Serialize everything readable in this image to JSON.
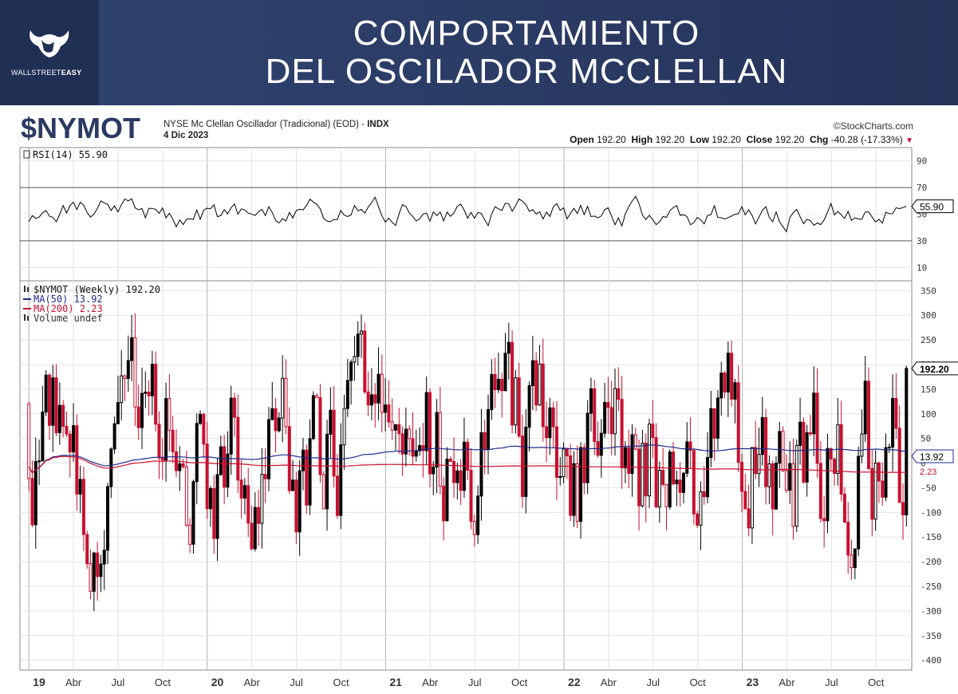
{
  "header": {
    "brand": "WALLSTREET",
    "brand_bold": "EASY",
    "title_line1": "COMPORTAMIENTO",
    "title_line2": "DEL OSCILADOR MCCLELLAN"
  },
  "chart_header": {
    "symbol": "$NYMOT",
    "description": "NYSE Mc Clellan Oscillador (Tradicional) (EOD) - ",
    "exchange": "INDX",
    "date": "4 Dic 2023",
    "source": "©StockCharts.com",
    "open_label": "Open",
    "open": "192.20",
    "high_label": "High",
    "high": "192.20",
    "low_label": "Low",
    "low": "192.20",
    "close_label": "Close",
    "close": "192.20",
    "chg_label": "Chg",
    "chg": "-40.28 (-17.33%)"
  },
  "colors": {
    "up": "#000000",
    "down": "#c8102e",
    "ma50": "#1f2a8c",
    "ma200": "#c8102e",
    "rsi": "#000000",
    "grid": "#e3e3e3",
    "banner": "#2a3a63"
  },
  "chart_data": [
    {
      "type": "line",
      "title": "RSI(14) 55.90",
      "series": [
        {
          "name": "RSI(14)",
          "last": 55.9
        }
      ],
      "ylim": [
        0,
        100
      ],
      "yticks": [
        10,
        30,
        50,
        70,
        90
      ],
      "reference_lines": [
        30,
        70
      ],
      "last_label": "55.90",
      "grid": true
    },
    {
      "type": "candlestick",
      "title": "$NYMOT (Weekly) 192.20",
      "ylim": [
        -420,
        370
      ],
      "yticks": [
        350,
        300,
        250,
        200,
        150,
        100,
        50,
        0,
        -50,
        -100,
        -150,
        -200,
        -250,
        -300,
        -350,
        -400
      ],
      "ytick_labels": [
        "350",
        "300",
        "250",
        "200",
        "150",
        "100",
        "50",
        "0",
        "-50",
        "-100",
        "-150",
        "-200",
        "-250",
        "-300",
        "-350",
        "-400"
      ],
      "series": [
        {
          "name": "$NYMOT (Weekly) 192.20",
          "last": 192.2,
          "last_label": "192.20"
        },
        {
          "name": "MA(50) 13.92",
          "last": 13.92,
          "last_label": "13.92"
        },
        {
          "name": "MA(200) 2.23",
          "last": 2.23,
          "last_label": "2.23"
        },
        {
          "name": "Volume undef"
        }
      ],
      "x_ticks": [
        {
          "label": "19",
          "bold": true,
          "pos": 0.0
        },
        {
          "label": "Abr",
          "pos": 0.25
        },
        {
          "label": "Jul",
          "pos": 0.5
        },
        {
          "label": "Oct",
          "pos": 0.75
        },
        {
          "label": "20",
          "bold": true,
          "pos": 1.0
        },
        {
          "label": "Abr",
          "pos": 1.25
        },
        {
          "label": "Jul",
          "pos": 1.5
        },
        {
          "label": "Oct",
          "pos": 1.75
        },
        {
          "label": "21",
          "bold": true,
          "pos": 2.0
        },
        {
          "label": "Abr",
          "pos": 2.25
        },
        {
          "label": "Jul",
          "pos": 2.5
        },
        {
          "label": "Oct",
          "pos": 2.75
        },
        {
          "label": "22",
          "bold": true,
          "pos": 3.0
        },
        {
          "label": "Abr",
          "pos": 3.25
        },
        {
          "label": "Jul",
          "pos": 3.5
        },
        {
          "label": "Oct",
          "pos": 3.75
        },
        {
          "label": "23",
          "bold": true,
          "pos": 4.0
        },
        {
          "label": "Abr",
          "pos": 4.25
        },
        {
          "label": "Jul",
          "pos": 4.5
        },
        {
          "label": "Oct",
          "pos": 4.75
        }
      ],
      "x_range_years": [
        -0.05,
        4.95
      ],
      "grid": true
    }
  ]
}
